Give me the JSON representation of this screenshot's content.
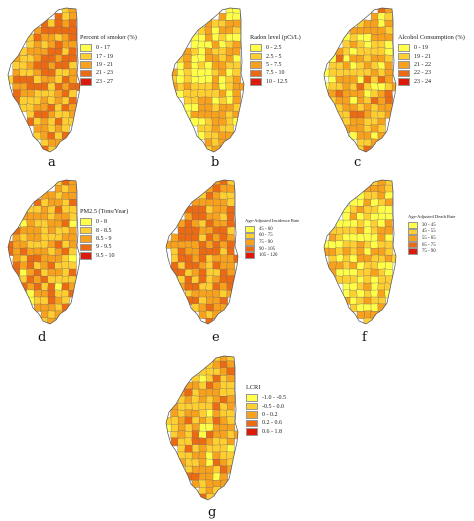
{
  "colors": {
    "c1": "#ffff4a",
    "c2": "#ffcf31",
    "c3": "#f8a11c",
    "c4": "#ec6a12",
    "c5": "#dc190a",
    "border": "#6d6d6d"
  },
  "panels": [
    {
      "id": "a",
      "letter": "a",
      "legend_title": "Percent of smoker (%)",
      "small": false,
      "legend": [
        {
          "label": "0 - 17",
          "color": "#ffff4a"
        },
        {
          "label": "17 - 19",
          "color": "#ffcf31"
        },
        {
          "label": "19 - 21",
          "color": "#f8a11c"
        },
        {
          "label": "21 - 23",
          "color": "#ec6a12"
        },
        {
          "label": "23 - 27",
          "color": "#dc190a"
        }
      ]
    },
    {
      "id": "b",
      "letter": "b",
      "legend_title": "Radon level (pCi/L)",
      "small": false,
      "legend": [
        {
          "label": "0 - 2.5",
          "color": "#ffff4a"
        },
        {
          "label": "2.5 - 5",
          "color": "#ffcf31"
        },
        {
          "label": "5 - 7.5",
          "color": "#f8a11c"
        },
        {
          "label": "7.5 - 10",
          "color": "#ec6a12"
        },
        {
          "label": "10 - 12.5",
          "color": "#dc190a"
        }
      ]
    },
    {
      "id": "c",
      "letter": "c",
      "legend_title": "Alcohol Consumption (%)",
      "small": false,
      "legend": [
        {
          "label": "0 - 19",
          "color": "#ffff4a"
        },
        {
          "label": "19 - 21",
          "color": "#ffcf31"
        },
        {
          "label": "21 - 22",
          "color": "#f8a11c"
        },
        {
          "label": "22 - 23",
          "color": "#ec6a12"
        },
        {
          "label": "23 - 24",
          "color": "#dc190a"
        }
      ]
    },
    {
      "id": "d",
      "letter": "d",
      "legend_title": "PM2.5 (Tons/Year)",
      "small": false,
      "legend": [
        {
          "label": "0 - 8",
          "color": "#ffff4a"
        },
        {
          "label": "8 - 8.5",
          "color": "#ffcf31"
        },
        {
          "label": "8.5 - 9",
          "color": "#f8a11c"
        },
        {
          "label": "9 - 9.5",
          "color": "#ec6a12"
        },
        {
          "label": "9.5 - 10",
          "color": "#dc190a"
        }
      ]
    },
    {
      "id": "e",
      "letter": "e",
      "legend_title": "Age-Adjusted Incidence Rate",
      "small": true,
      "legend": [
        {
          "label": "45 - 60",
          "color": "#ffff4a"
        },
        {
          "label": "60 - 75",
          "color": "#ffcf31"
        },
        {
          "label": "75 - 90",
          "color": "#f8a11c"
        },
        {
          "label": "90 - 105",
          "color": "#ec6a12"
        },
        {
          "label": "105 - 120",
          "color": "#dc190a"
        }
      ]
    },
    {
      "id": "f",
      "letter": "f",
      "legend_title": "Age-Adjusted Death Rate",
      "small": true,
      "legend": [
        {
          "label": "30 - 45",
          "color": "#ffff4a"
        },
        {
          "label": "45 - 55",
          "color": "#ffcf31"
        },
        {
          "label": "55 - 65",
          "color": "#f8a11c"
        },
        {
          "label": "65 - 75",
          "color": "#ec6a12"
        },
        {
          "label": "75 - 90",
          "color": "#dc190a"
        }
      ]
    },
    {
      "id": "g",
      "letter": "g",
      "legend_title": "LCRI",
      "small": false,
      "legend": [
        {
          "label": "-1.0 - -0.5",
          "color": "#ffff4a"
        },
        {
          "label": "-0.5 - 0.0",
          "color": "#ffcf31"
        },
        {
          "label": "0 - 0.2",
          "color": "#f8a11c"
        },
        {
          "label": "0.2 - 0.6",
          "color": "#ec6a12"
        },
        {
          "label": "0.6 - 1.8",
          "color": "#dc190a"
        }
      ]
    }
  ]
}
